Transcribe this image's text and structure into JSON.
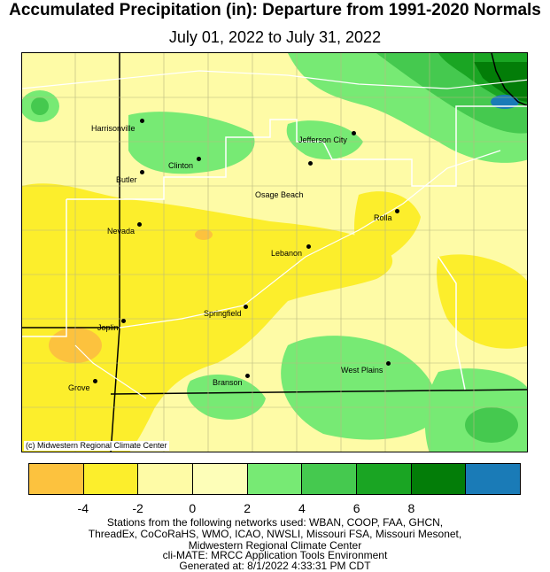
{
  "title": "Accumulated Precipitation (in): Departure from 1991-2020 Normals",
  "subtitle": "July 01, 2022 to July 31, 2022",
  "map": {
    "credit": "(c) Midwestern Regional Climate Center",
    "cities": [
      {
        "name": "Harrisonville",
        "key": "harrisonville"
      },
      {
        "name": "Clinton",
        "key": "clinton"
      },
      {
        "name": "Butler",
        "key": "butler"
      },
      {
        "name": "Jefferson City",
        "key": "jefferson-city"
      },
      {
        "name": "Osage Beach",
        "key": "osage-beach"
      },
      {
        "name": "Rolla",
        "key": "rolla"
      },
      {
        "name": "Nevada",
        "key": "nevada"
      },
      {
        "name": "Lebanon",
        "key": "lebanon"
      },
      {
        "name": "Springfield",
        "key": "springfield"
      },
      {
        "name": "Joplin",
        "key": "joplin"
      },
      {
        "name": "West Plains",
        "key": "west-plains"
      },
      {
        "name": "Branson",
        "key": "branson"
      },
      {
        "name": "Grove",
        "key": "grove"
      }
    ]
  },
  "legend": {
    "colors": [
      "#fcc23e",
      "#fcee2c",
      "#fefba6",
      "#fdfeb8",
      "#77ea74",
      "#45c94f",
      "#1aa523",
      "#037d08",
      "#1a7bb7"
    ],
    "ticks": [
      "-4",
      "-2",
      "0",
      "2",
      "4",
      "6",
      "8"
    ]
  },
  "footer": {
    "line1": "Stations from the following networks used: WBAN, COOP, FAA, GHCN,",
    "line2": "ThreadEx, CoCoRaHS, WMO, ICAO, NWSLI, Missouri FSA, Missouri Mesonet,",
    "line3": "Midwestern Regional Climate Center",
    "line4": "cli-MATE: MRCC Application Tools Environment",
    "line5": "Generated at: 8/1/2022 4:33:31 PM CDT"
  }
}
